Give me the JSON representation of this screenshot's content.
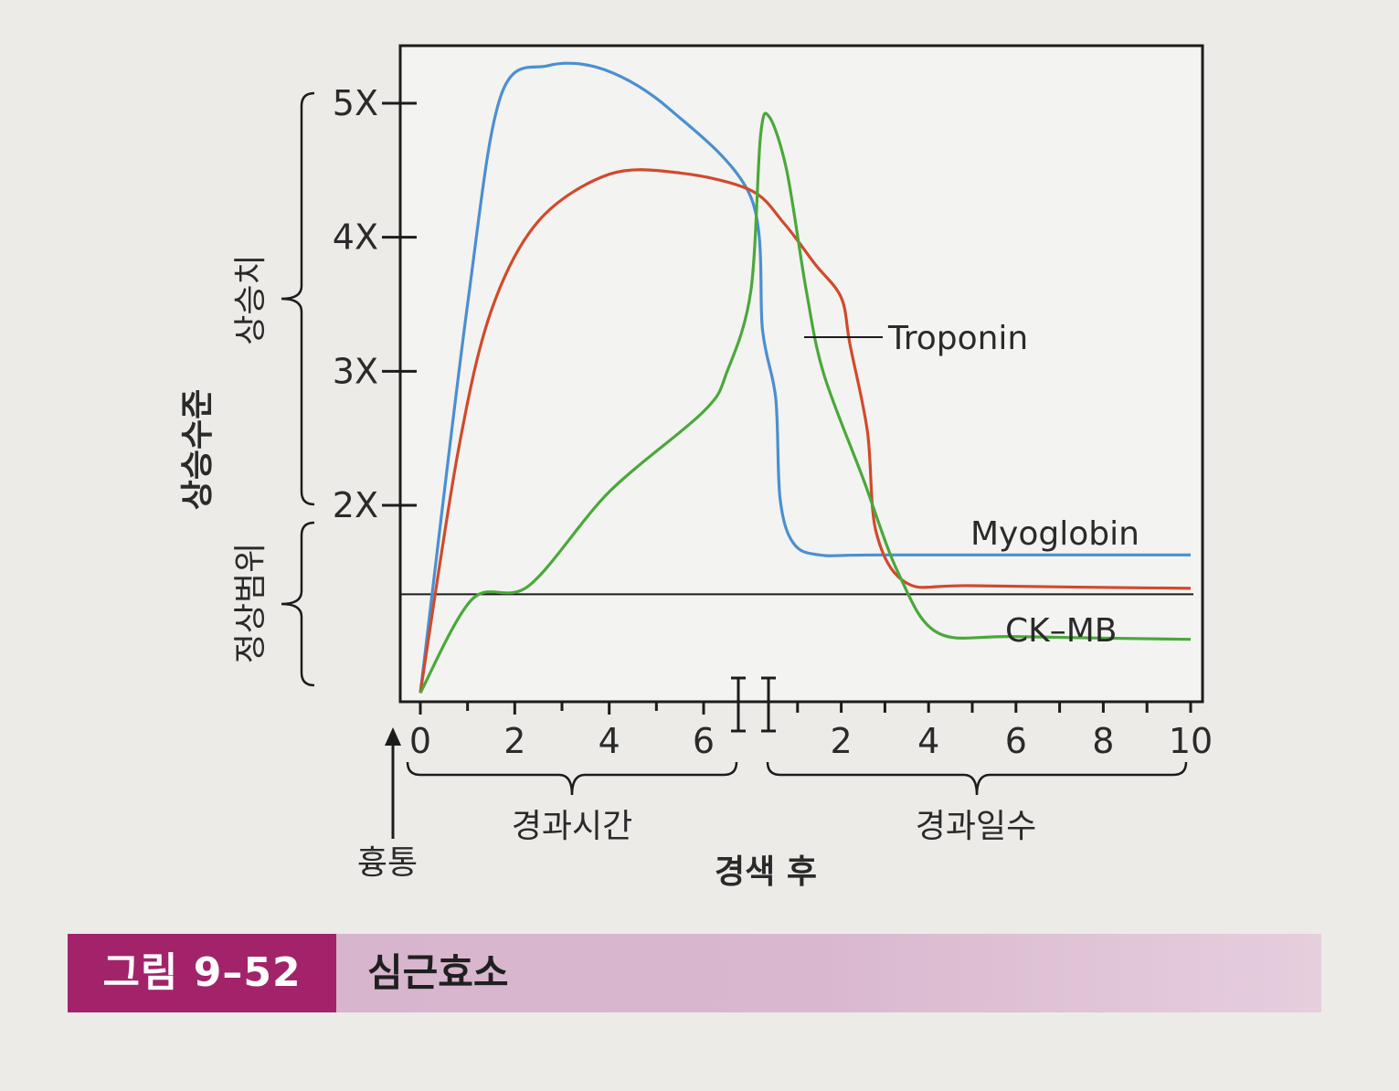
{
  "chart_data": {
    "type": "line",
    "title": "",
    "xlabel": "경색 후",
    "ylabel": "상승수준",
    "x_segments": [
      {
        "label": "경과시간",
        "ticks": [
          "0",
          "2",
          "4",
          "6"
        ],
        "range": [
          0,
          7
        ]
      },
      {
        "label": "경과일수",
        "ticks": [
          "2",
          "4",
          "6",
          "8",
          "10"
        ],
        "range": [
          0,
          10
        ]
      }
    ],
    "y_ticks": [
      "2X",
      "3X",
      "4X",
      "5X"
    ],
    "y_range": [
      0.6,
      5.5
    ],
    "y_brace_labels": {
      "elevated": "상승치",
      "normal": "정상범위"
    },
    "onset_label": "흉통",
    "reference_line": 1.35,
    "series": [
      {
        "name": "Myoglobin",
        "color": "#4b8fd0",
        "points": [
          [
            0,
            0.6
          ],
          [
            1.0,
            3.5
          ],
          [
            1.7,
            5.05
          ],
          [
            2.7,
            5.28
          ],
          [
            3.9,
            5.25
          ],
          [
            5.3,
            4.95
          ],
          [
            7,
            4.3
          ],
          [
            0.2,
            3.3
          ],
          [
            0.5,
            2.8
          ],
          [
            0.6,
            2.05
          ],
          [
            0.9,
            1.72
          ],
          [
            1.5,
            1.63
          ],
          [
            3,
            1.63
          ],
          [
            10,
            1.63
          ]
        ]
      },
      {
        "name": "Troponin",
        "color": "#d04a2c",
        "points": [
          [
            0,
            0.6
          ],
          [
            0.8,
            2.4
          ],
          [
            1.5,
            3.45
          ],
          [
            2.5,
            4.12
          ],
          [
            4,
            4.47
          ],
          [
            5.5,
            4.48
          ],
          [
            7,
            4.35
          ],
          [
            0.7,
            4.1
          ],
          [
            1.4,
            3.8
          ],
          [
            2.0,
            3.55
          ],
          [
            2.2,
            3.2
          ],
          [
            2.6,
            2.55
          ],
          [
            2.8,
            1.8
          ],
          [
            3.5,
            1.42
          ],
          [
            5,
            1.4
          ],
          [
            10,
            1.38
          ]
        ]
      },
      {
        "name": "CK–MB",
        "color": "#4aa83a",
        "points": [
          [
            0,
            0.6
          ],
          [
            1.1,
            1.3
          ],
          [
            2.3,
            1.4
          ],
          [
            4,
            2.1
          ],
          [
            6,
            2.7
          ],
          [
            6.5,
            3.0
          ],
          [
            7,
            3.6
          ],
          [
            0.15,
            4.75
          ],
          [
            0.35,
            4.9
          ],
          [
            0.75,
            4.5
          ],
          [
            1.2,
            3.6
          ],
          [
            1.6,
            2.98
          ],
          [
            2.5,
            2.2
          ],
          [
            3.3,
            1.5
          ],
          [
            4.2,
            1.05
          ],
          [
            6,
            1.02
          ],
          [
            10,
            1.0
          ]
        ]
      }
    ]
  },
  "caption": {
    "figure_number": "그림 9–52",
    "title": "심근효소"
  }
}
